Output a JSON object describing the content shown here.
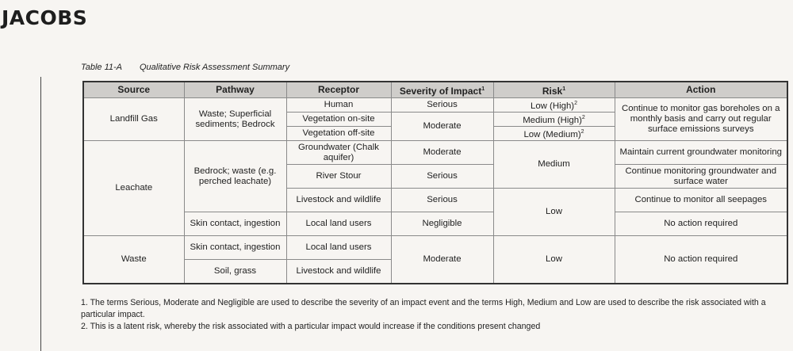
{
  "logo": "JACOBS",
  "caption": {
    "number": "Table 11-A",
    "title": "Qualitative Risk Assessment Summary"
  },
  "headers": {
    "source": "Source",
    "pathway": "Pathway",
    "receptor": "Receptor",
    "severity": "Severity of Impact",
    "severity_sup": "1",
    "risk": "Risk",
    "risk_sup": "1",
    "action": "Action"
  },
  "landfill": {
    "source": "Landfill Gas",
    "pathway": "Waste; Superficial sediments; Bedrock",
    "receptor_1": "Human",
    "receptor_2": "Vegetation on-site",
    "receptor_3": "Vegetation off-site",
    "severity_1": "Serious",
    "severity_2": "Moderate",
    "risk_1": "Low (High)",
    "risk_2": "Medium (High)",
    "risk_3": "Low (Medium)",
    "risk_sup": "2",
    "action": "Continue to monitor gas boreholes on a monthly basis and carry out regular surface emissions surveys"
  },
  "leachate": {
    "source": "Leachate",
    "pathway_1": "Bedrock; waste (e.g. perched leachate)",
    "pathway_2": "Skin contact, ingestion",
    "receptor_1": "Groundwater (Chalk aquifer)",
    "receptor_2": "River Stour",
    "receptor_3": "Livestock and wildlife",
    "receptor_4": "Local land users",
    "severity_1": "Moderate",
    "severity_2": "Serious",
    "severity_3": "Serious",
    "severity_4": "Negligible",
    "risk_1": "Medium",
    "risk_2": "Low",
    "action_1": "Maintain current groundwater monitoring",
    "action_2": "Continue monitoring groundwater and surface water",
    "action_3": "Continue to monitor all seepages",
    "action_4": "No action required"
  },
  "waste": {
    "source": "Waste",
    "pathway_1": "Skin contact, ingestion",
    "pathway_2": "Soil, grass",
    "receptor_1": "Local land users",
    "receptor_2": "Livestock and wildlife",
    "severity": "Moderate",
    "risk": "Low",
    "action": "No action required"
  },
  "notes": [
    "1. The terms Serious, Moderate and Negligible are used to describe the severity of an impact event and the terms High, Medium and Low are used to describe the risk associated with a particular impact.",
    "2. This is a latent risk, whereby the risk associated with a particular impact would increase if the conditions present changed"
  ]
}
